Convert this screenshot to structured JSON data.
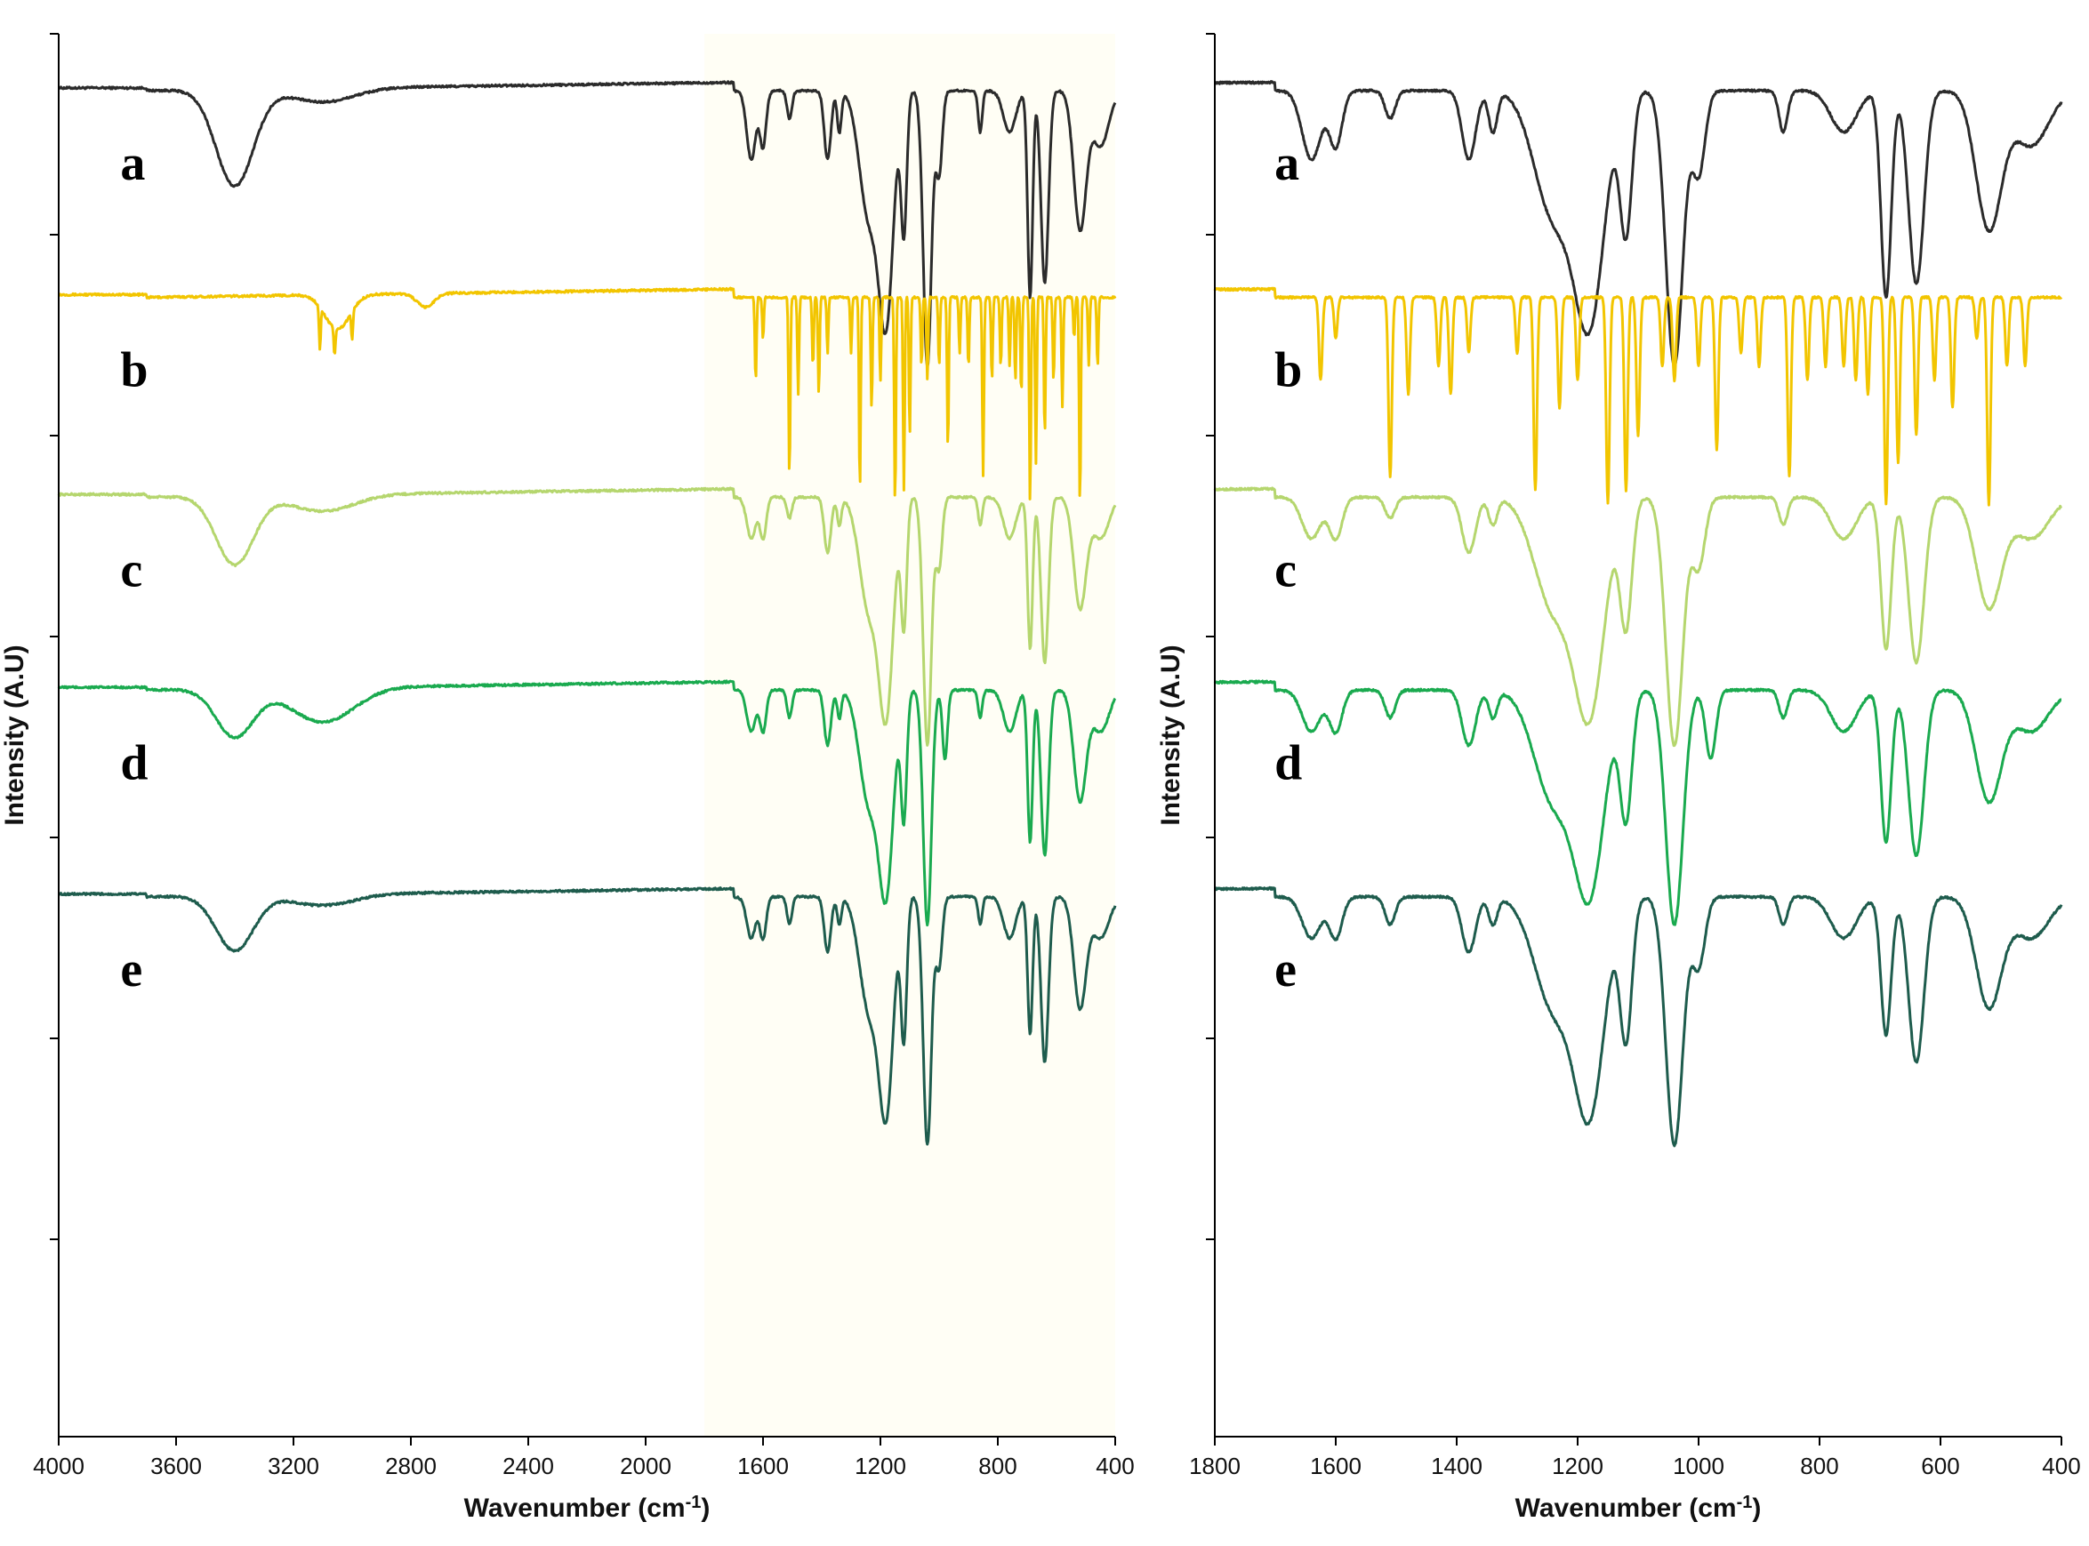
{
  "chart_data": [
    {
      "type": "line",
      "panel": "left",
      "xlabel": "Wavenumber (cm",
      "xlabel_sup": "-1",
      "xlabel_end": ")",
      "ylabel": "Intensity (A.U)",
      "xlim": [
        4000,
        400
      ],
      "x_ticks": [
        4000,
        3600,
        3200,
        2800,
        2400,
        2000,
        1600,
        1200,
        800,
        400
      ],
      "shaded_region": [
        1800,
        400
      ],
      "y_ticks": 7,
      "series": [
        {
          "name": "a",
          "color": "#2b2b2b",
          "baseline": 0.96,
          "broad": [
            [
              3400,
              90,
              0.07
            ],
            [
              3100,
              150,
              0.01
            ]
          ],
          "peaks": [
            [
              1640,
              22,
              0.05
            ],
            [
              1600,
              15,
              0.04
            ],
            [
              1510,
              12,
              0.02
            ],
            [
              1380,
              16,
              0.05
            ],
            [
              1340,
              10,
              0.03
            ],
            [
              1240,
              45,
              0.09
            ],
            [
              1180,
              35,
              0.16
            ],
            [
              1120,
              14,
              0.1
            ],
            [
              1040,
              20,
              0.2
            ],
            [
              1000,
              15,
              0.06
            ],
            [
              860,
              10,
              0.03
            ],
            [
              760,
              30,
              0.03
            ],
            [
              690,
              12,
              0.15
            ],
            [
              640,
              18,
              0.14
            ],
            [
              520,
              30,
              0.1
            ],
            [
              450,
              40,
              0.04
            ]
          ]
        },
        {
          "name": "b",
          "color": "#f2c500",
          "baseline": 0.81,
          "broad": [
            [
              3050,
              60,
              0.025
            ],
            [
              2750,
              40,
              0.01
            ]
          ],
          "spikes": [
            [
              3110,
              0.03
            ],
            [
              3060,
              0.02
            ],
            [
              3000,
              0.02
            ],
            [
              1625,
              0.06
            ],
            [
              1600,
              0.03
            ],
            [
              1510,
              0.13
            ],
            [
              1480,
              0.07
            ],
            [
              1430,
              0.05
            ],
            [
              1410,
              0.07
            ],
            [
              1380,
              0.04
            ],
            [
              1300,
              0.04
            ],
            [
              1270,
              0.14
            ],
            [
              1230,
              0.08
            ],
            [
              1200,
              0.06
            ],
            [
              1150,
              0.15
            ],
            [
              1120,
              0.14
            ],
            [
              1100,
              0.1
            ],
            [
              1060,
              0.05
            ],
            [
              1040,
              0.06
            ],
            [
              1000,
              0.05
            ],
            [
              970,
              0.11
            ],
            [
              930,
              0.04
            ],
            [
              900,
              0.05
            ],
            [
              850,
              0.13
            ],
            [
              820,
              0.06
            ],
            [
              790,
              0.05
            ],
            [
              760,
              0.05
            ],
            [
              740,
              0.06
            ],
            [
              720,
              0.07
            ],
            [
              690,
              0.15
            ],
            [
              670,
              0.12
            ],
            [
              640,
              0.1
            ],
            [
              610,
              0.06
            ],
            [
              580,
              0.08
            ],
            [
              540,
              0.03
            ],
            [
              520,
              0.15
            ],
            [
              490,
              0.05
            ],
            [
              460,
              0.05
            ]
          ]
        },
        {
          "name": "c",
          "color": "#b5d66e",
          "baseline": 0.665,
          "broad": [
            [
              3400,
              90,
              0.05
            ],
            [
              3100,
              150,
              0.012
            ]
          ],
          "peaks": [
            [
              1640,
              22,
              0.03
            ],
            [
              1600,
              15,
              0.03
            ],
            [
              1510,
              12,
              0.015
            ],
            [
              1380,
              16,
              0.04
            ],
            [
              1340,
              10,
              0.02
            ],
            [
              1240,
              45,
              0.08
            ],
            [
              1180,
              35,
              0.15
            ],
            [
              1120,
              14,
              0.09
            ],
            [
              1040,
              20,
              0.18
            ],
            [
              1000,
              15,
              0.05
            ],
            [
              860,
              10,
              0.02
            ],
            [
              760,
              30,
              0.03
            ],
            [
              690,
              12,
              0.11
            ],
            [
              640,
              18,
              0.12
            ],
            [
              520,
              30,
              0.08
            ],
            [
              450,
              40,
              0.03
            ]
          ]
        },
        {
          "name": "d",
          "color": "#1aaa4f",
          "baseline": 0.525,
          "broad": [
            [
              3400,
              90,
              0.035
            ],
            [
              3100,
              150,
              0.025
            ]
          ],
          "peaks": [
            [
              1640,
              22,
              0.03
            ],
            [
              1600,
              15,
              0.03
            ],
            [
              1510,
              12,
              0.02
            ],
            [
              1380,
              16,
              0.04
            ],
            [
              1340,
              10,
              0.02
            ],
            [
              1240,
              45,
              0.08
            ],
            [
              1180,
              35,
              0.14
            ],
            [
              1120,
              14,
              0.09
            ],
            [
              1040,
              20,
              0.17
            ],
            [
              980,
              12,
              0.05
            ],
            [
              860,
              10,
              0.02
            ],
            [
              760,
              30,
              0.03
            ],
            [
              690,
              12,
              0.11
            ],
            [
              640,
              18,
              0.12
            ],
            [
              520,
              30,
              0.08
            ],
            [
              450,
              40,
              0.03
            ]
          ]
        },
        {
          "name": "e",
          "color": "#1e5c4d",
          "baseline": 0.375,
          "broad": [
            [
              3400,
              90,
              0.04
            ],
            [
              3100,
              150,
              0.008
            ]
          ],
          "peaks": [
            [
              1640,
              22,
              0.03
            ],
            [
              1600,
              15,
              0.03
            ],
            [
              1510,
              12,
              0.02
            ],
            [
              1380,
              16,
              0.04
            ],
            [
              1340,
              10,
              0.02
            ],
            [
              1240,
              45,
              0.08
            ],
            [
              1180,
              35,
              0.15
            ],
            [
              1120,
              14,
              0.1
            ],
            [
              1040,
              20,
              0.18
            ],
            [
              1000,
              15,
              0.05
            ],
            [
              860,
              10,
              0.02
            ],
            [
              760,
              30,
              0.03
            ],
            [
              690,
              12,
              0.1
            ],
            [
              640,
              18,
              0.12
            ],
            [
              520,
              30,
              0.08
            ],
            [
              450,
              40,
              0.03
            ]
          ]
        }
      ]
    },
    {
      "type": "line",
      "panel": "right",
      "xlabel": "Wavenumber (cm",
      "xlabel_sup": "-1",
      "xlabel_end": ")",
      "ylabel": "Intensity (A.U)",
      "xlim": [
        1800,
        400
      ],
      "x_ticks": [
        1800,
        1600,
        1400,
        1200,
        1000,
        800,
        600,
        400
      ],
      "y_ticks": 7,
      "series_from_left": true
    }
  ]
}
